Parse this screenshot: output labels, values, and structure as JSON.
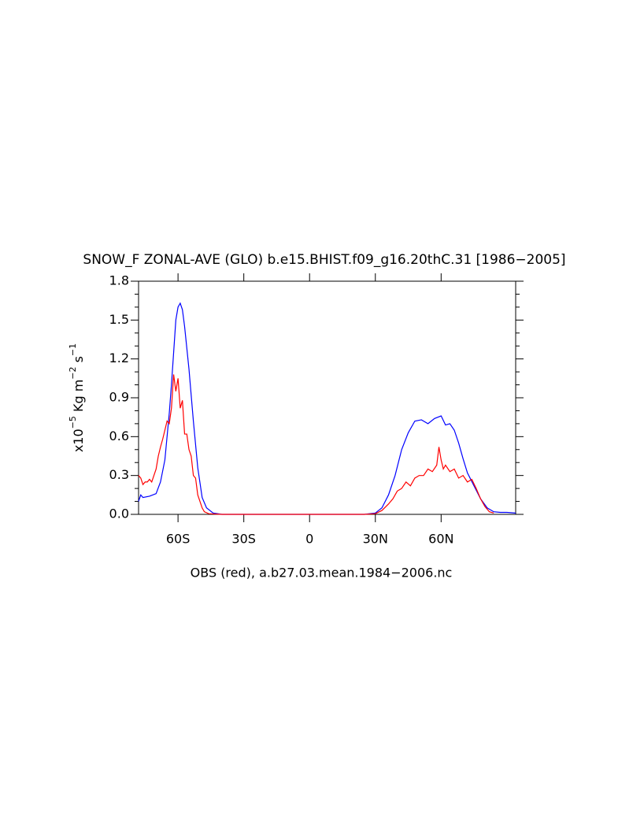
{
  "chart_data": {
    "type": "line",
    "title": "SNOW_F ZONAL-AVE (GLO) b.e15.BHIST.f09_g16.20thC.31 [1986−2005]",
    "x_label": "OBS (red), a.b27.03.mean.1984−2006.nc",
    "y_label": [
      "x10",
      "−5",
      " Kg m",
      "−2",
      " s",
      "−1"
    ],
    "xlim": [
      -78,
      94
    ],
    "xticks": [
      {
        "value": -60,
        "label": "60S"
      },
      {
        "value": -30,
        "label": "30S"
      },
      0,
      {
        "value": 30,
        "label": "30N"
      },
      {
        "value": 60,
        "label": "60N"
      }
    ],
    "ylim": [
      0,
      1.8
    ],
    "yticks": [
      {
        "value": 0,
        "label": "0.0"
      },
      0.3,
      0.6,
      0.9,
      1.2,
      1.5,
      1.8
    ],
    "series": [
      {
        "color": "#0000ff",
        "x": [
          -78,
          -77,
          -76,
          -73,
          -70,
          -68,
          -66,
          -64,
          -63,
          -62,
          -61,
          -60,
          -59,
          -58,
          -57,
          -55,
          -53,
          -51,
          -49,
          -47,
          -44,
          -40,
          25,
          30,
          33,
          36,
          39,
          42,
          45,
          48,
          51,
          54,
          57,
          60,
          62,
          64,
          66,
          68,
          70,
          72,
          75,
          78,
          81,
          84,
          87,
          90,
          94
        ],
        "values": [
          0.1,
          0.15,
          0.13,
          0.14,
          0.16,
          0.25,
          0.42,
          0.78,
          1.0,
          1.25,
          1.5,
          1.6,
          1.63,
          1.58,
          1.45,
          1.12,
          0.72,
          0.36,
          0.13,
          0.05,
          0.01,
          0,
          0,
          0.01,
          0.05,
          0.15,
          0.3,
          0.5,
          0.63,
          0.72,
          0.73,
          0.7,
          0.74,
          0.76,
          0.69,
          0.7,
          0.65,
          0.55,
          0.43,
          0.32,
          0.22,
          0.12,
          0.05,
          0.02,
          0.015,
          0.015,
          0.01
        ]
      },
      {
        "color": "#ff0000",
        "x": [
          -78,
          -77,
          -76,
          -75,
          -74,
          -73,
          -72,
          -71,
          -70,
          -69,
          -68,
          -67,
          -66,
          -65,
          -64,
          -63,
          -62,
          -61,
          -60,
          -59,
          -58,
          -57,
          -56,
          -55,
          -54,
          -53,
          -52,
          -51,
          -50,
          -49,
          -48,
          -46,
          -40,
          25,
          30,
          33,
          36,
          38,
          40,
          42,
          44,
          46,
          48,
          50,
          52,
          54,
          56,
          58,
          59,
          60,
          61,
          62,
          64,
          66,
          68,
          70,
          72,
          74,
          76,
          78,
          80,
          82,
          84
        ],
        "values": [
          0.3,
          0.28,
          0.23,
          0.25,
          0.25,
          0.27,
          0.25,
          0.3,
          0.35,
          0.45,
          0.52,
          0.58,
          0.65,
          0.72,
          0.7,
          0.82,
          1.08,
          0.95,
          1.05,
          0.82,
          0.88,
          0.62,
          0.62,
          0.5,
          0.45,
          0.3,
          0.28,
          0.15,
          0.1,
          0.05,
          0.02,
          0.005,
          0,
          0,
          0.005,
          0.03,
          0.08,
          0.12,
          0.18,
          0.2,
          0.25,
          0.22,
          0.28,
          0.3,
          0.3,
          0.35,
          0.33,
          0.38,
          0.52,
          0.42,
          0.35,
          0.38,
          0.33,
          0.35,
          0.28,
          0.3,
          0.25,
          0.27,
          0.2,
          0.12,
          0.06,
          0.02,
          0.01
        ]
      }
    ]
  }
}
